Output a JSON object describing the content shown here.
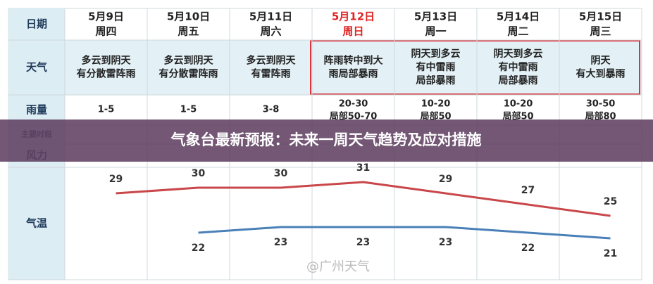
{
  "row_labels": {
    "date": "日期",
    "weather": "天气",
    "rain": "雨量",
    "period": "主要时段",
    "wind": "风力",
    "temp": "气温"
  },
  "days": [
    {
      "date": "5月9日",
      "weekday": "周四",
      "color": "#222222",
      "weather": [
        "多云到阴天",
        "有分散雷阵雨"
      ],
      "rain": [
        "1-5"
      ]
    },
    {
      "date": "5月10日",
      "weekday": "周五",
      "color": "#222222",
      "weather": [
        "多云到阴天",
        "有分散雷阵雨"
      ],
      "rain": [
        "1-5"
      ]
    },
    {
      "date": "5月11日",
      "weekday": "周六",
      "color": "#222222",
      "weather": [
        "多云到阴天",
        "有雷阵雨"
      ],
      "rain": [
        "3-8"
      ]
    },
    {
      "date": "5月12日",
      "weekday": "周日",
      "color": "#e02424",
      "weather": [
        "阵雨转中到大",
        "雨局部暴雨"
      ],
      "rain": [
        "20-30",
        "局部50-70"
      ]
    },
    {
      "date": "5月13日",
      "weekday": "周一",
      "color": "#222222",
      "weather": [
        "阴天到多云",
        "有中雷雨",
        "局部暴雨"
      ],
      "rain": [
        "10-20",
        "局部50"
      ]
    },
    {
      "date": "5月14日",
      "weekday": "周二",
      "color": "#222222",
      "weather": [
        "阴天到多云",
        "有中雷雨",
        "局部暴雨"
      ],
      "rain": [
        "10-20",
        "局部50"
      ]
    },
    {
      "date": "5月15日",
      "weekday": "周三",
      "color": "#222222",
      "weather": [
        "阴天",
        "有大到暴雨"
      ],
      "rain": [
        "30-50",
        "局部80"
      ]
    }
  ],
  "temperature": {
    "high": [
      29,
      30,
      30,
      31,
      29,
      27,
      25
    ],
    "low": [
      null,
      22,
      23,
      23,
      23,
      22,
      21
    ],
    "high_color": "#c9474a",
    "low_color": "#4a80b8"
  },
  "banner": "气象台最新预报：未来一周天气趋势及应对措施",
  "watermark": "@广州天气"
}
